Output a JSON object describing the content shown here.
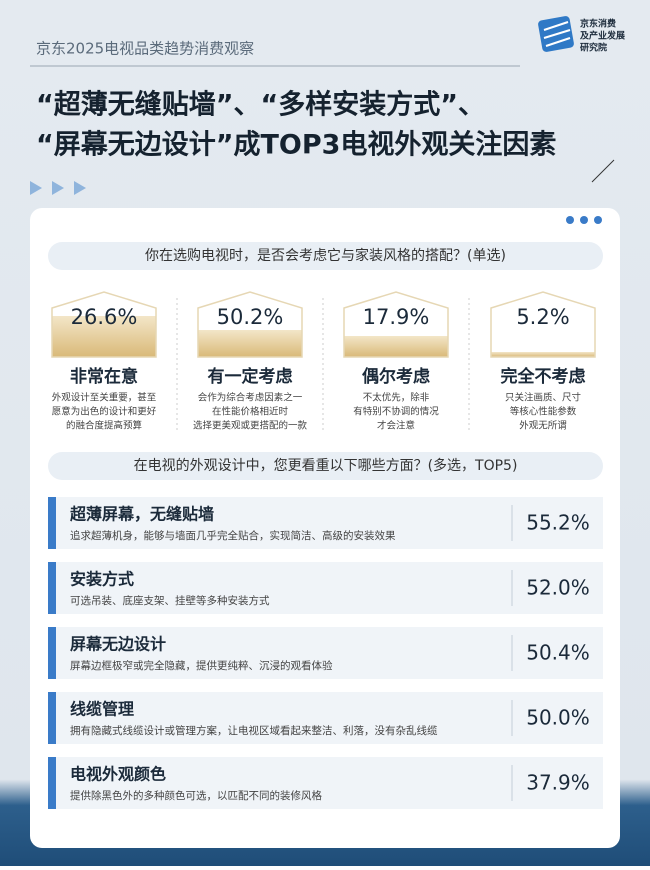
{
  "header": {
    "subtitle": "京东2025电视品类趋势消费观察",
    "logo": [
      "京东消费",
      "及产业发展",
      "研究院"
    ],
    "title": [
      "“超薄无缝贴墙”、“多样安装方式”、",
      "“屏幕无边设计”成TOP3电视外观关注因素"
    ]
  },
  "q1": {
    "question": "你在选购电视时，是否会考虑它与家装风格的搭配？(单选)",
    "options": [
      {
        "value": "26.6%",
        "label": "非常在意",
        "desc": [
          "外观设计至关重要，甚至",
          "愿意为出色的设计和更好",
          "的融合度提高预算"
        ]
      },
      {
        "value": "50.2%",
        "label": "有一定考虑",
        "desc": [
          "会作为综合考虑因素之一",
          "在性能价格相近时",
          "选择更美观或更搭配的一款"
        ]
      },
      {
        "value": "17.9%",
        "label": "偶尔考虑",
        "desc": [
          "不太优先，除非",
          "有特别不协调的情况",
          "才会注意"
        ]
      },
      {
        "value": "5.2%",
        "label": "完全不考虑",
        "desc": [
          "只关注画质、尺寸",
          "等核心性能参数",
          "外观无所谓"
        ]
      }
    ]
  },
  "q2": {
    "question": "在电视的外观设计中，您更看重以下哪些方面？(多选，TOP5)",
    "items": [
      {
        "title": "超薄屏幕，无缝贴墙",
        "desc": "追求超薄机身，能够与墙面几乎完全贴合，实现简洁、高级的安装效果",
        "value": "55.2%"
      },
      {
        "title": "安装方式",
        "desc": "可选吊装、底座支架、挂壁等多种安装方式",
        "value": "52.0%"
      },
      {
        "title": "屏幕无边设计",
        "desc": "屏幕边框极窄或完全隐藏，提供更纯粹、沉浸的观看体验",
        "value": "50.4%"
      },
      {
        "title": "线缆管理",
        "desc": "拥有隐藏式线缆设计或管理方案，让电视区域看起来整洁、利落，没有杂乱线缆",
        "value": "50.0%"
      },
      {
        "title": "电视外观颜色",
        "desc": "提供除黑色外的多种颜色可选，以匹配不同的装修风格",
        "value": "37.9%"
      }
    ]
  }
}
